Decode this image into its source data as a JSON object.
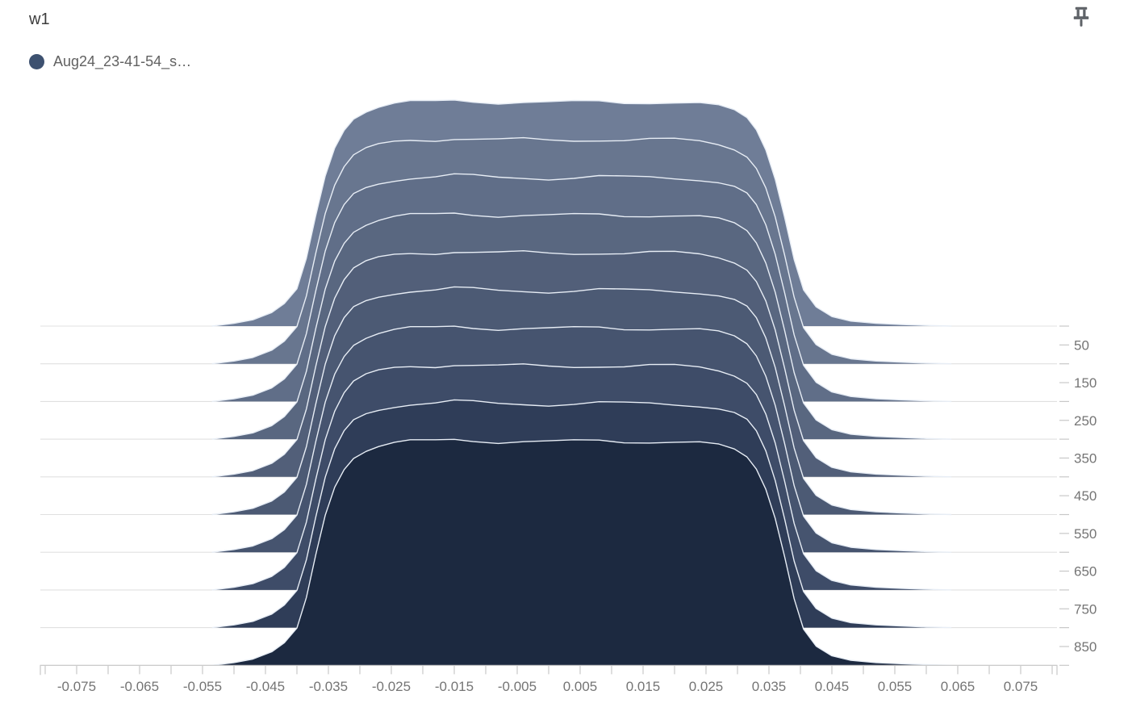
{
  "card": {
    "title": "w1"
  },
  "legend": {
    "run_label": "Aug24_23-41-54_s…",
    "dot_color": "#3D5170"
  },
  "icons": {
    "pin": "pushpin-icon",
    "pin_color": "#5F6368"
  },
  "colors": {
    "background": "#FFFFFF",
    "title_text": "#3C3C3C",
    "legend_text": "#616161",
    "axis_label_text": "#757575",
    "axis_line": "#C8C8C8",
    "gridline": "#E0E0E0",
    "ridge_stroke": "#E7EDF5"
  },
  "chart_data": {
    "type": "area",
    "subtype": "offset-histogram-ridgeline",
    "title": "w1",
    "series_name": "Aug24_23-41-54_s…",
    "steps": [
      0,
      100,
      200,
      300,
      400,
      500,
      600,
      700,
      800,
      900
    ],
    "step_fill_colors": [
      "#6F7D97",
      "#68768F",
      "#606E88",
      "#596780",
      "#525F79",
      "#4C5A74",
      "#46546F",
      "#3E4C68",
      "#2F3D58",
      "#1C2940"
    ],
    "x_axis": {
      "min": -0.08,
      "max": 0.08,
      "minor_tick_interval": 0.005,
      "tick_labels": [
        "-0.075",
        "-0.065",
        "-0.055",
        "-0.045",
        "-0.035",
        "-0.025",
        "-0.015",
        "-0.005",
        "0.005",
        "0.015",
        "0.025",
        "0.035",
        "0.045",
        "0.055",
        "0.065",
        "0.075"
      ]
    },
    "step_axis": {
      "side": "right",
      "min": 0,
      "max": 900,
      "minor_tick_interval": 50,
      "tick_labels": [
        "50",
        "150",
        "250",
        "350",
        "450",
        "550",
        "650",
        "750",
        "850"
      ],
      "gridline_steps": [
        0,
        100,
        200,
        300,
        400,
        500,
        600,
        700,
        800,
        900
      ]
    },
    "profile": {
      "comment_units": "x in weight-value units, height normalized 0..1 (same distribution shape repeated each step)",
      "x": [
        -0.0535,
        -0.05,
        -0.047,
        -0.044,
        -0.042,
        -0.04,
        -0.0385,
        -0.037,
        -0.0355,
        -0.034,
        -0.0325,
        -0.031,
        -0.029,
        -0.027,
        -0.0245,
        -0.022,
        -0.018,
        -0.015,
        -0.012,
        -0.008,
        -0.004,
        0.0,
        0.004,
        0.008,
        0.012,
        0.016,
        0.02,
        0.024,
        0.027,
        0.0295,
        0.0315,
        0.033,
        0.0345,
        0.036,
        0.0375,
        0.039,
        0.0405,
        0.0425,
        0.045,
        0.048,
        0.052,
        0.056,
        0.06,
        0.064
      ],
      "height": [
        0.0,
        0.012,
        0.028,
        0.06,
        0.1,
        0.165,
        0.3,
        0.49,
        0.665,
        0.79,
        0.87,
        0.92,
        0.95,
        0.968,
        0.982,
        0.99,
        0.992,
        1.0,
        0.996,
        0.99,
        0.992,
        0.988,
        0.99,
        0.994,
        0.99,
        0.992,
        0.99,
        0.984,
        0.972,
        0.952,
        0.92,
        0.868,
        0.78,
        0.65,
        0.48,
        0.295,
        0.16,
        0.085,
        0.042,
        0.022,
        0.012,
        0.007,
        0.003,
        0.0
      ],
      "plateau_wiggle_amplitude": 0.009
    }
  }
}
